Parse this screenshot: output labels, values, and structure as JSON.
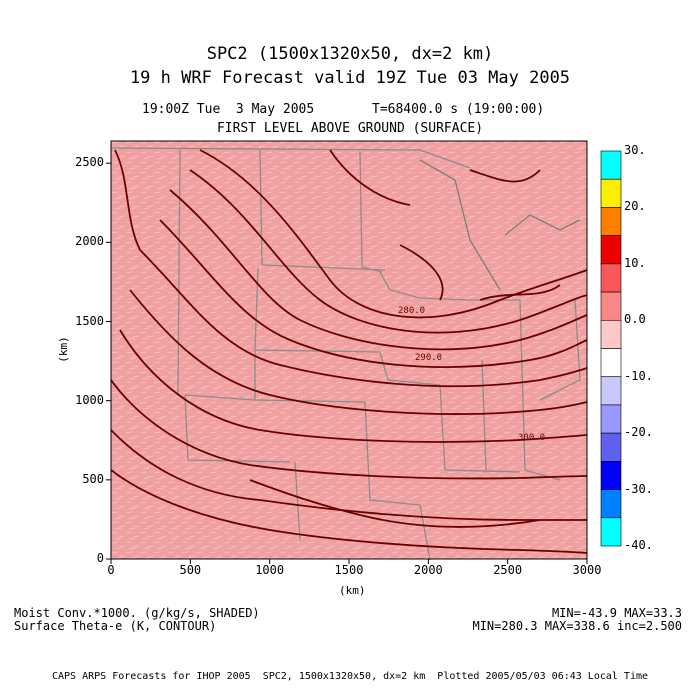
{
  "header": {
    "title_line1": "SPC2 (1500x1320x50, dx=2 km)",
    "title_line2": "19 h WRF Forecast valid 19Z Tue 03 May 2005",
    "valid_time": "19:00Z Tue  3 May 2005",
    "model_time": "T=68400.0 s (19:00:00)",
    "level": "FIRST LEVEL ABOVE GROUND (SURFACE)"
  },
  "map": {
    "xlabel": "(km)",
    "ylabel": "(km)",
    "xlim": [
      0,
      3000
    ],
    "ylim": [
      0,
      2640
    ],
    "x_ticks": [
      "0",
      "500",
      "1000",
      "1500",
      "2000",
      "2500",
      "3000"
    ],
    "y_ticks": [
      "0",
      "500",
      "1000",
      "1500",
      "2000",
      "2500"
    ],
    "contour_labels": [
      "280.0",
      "290.0",
      "300.0"
    ],
    "colors": {
      "background": "#f0a0a0",
      "contour": "#6b0000",
      "boundaries": "#8c8c8c"
    }
  },
  "colorbar": {
    "labels": [
      "30.",
      "20.",
      "10.",
      "0.0",
      "-10.",
      "-20.",
      "-30.",
      "-40."
    ],
    "colors": [
      "#00ffff",
      "#ffee00",
      "#ff8000",
      "#ee0000",
      "#f85858",
      "#f88888",
      "#ffc8c8",
      "#ffffff",
      "#c8c8ff",
      "#9898ff",
      "#6060f0",
      "#0000ff",
      "#0080ff",
      "#00ffff"
    ]
  },
  "footer": {
    "left_line1": "Moist Conv.*1000. (g/kg/s, SHADED)",
    "left_line2": "Surface Theta-e (K, CONTOUR)",
    "right_line1": "MIN=-43.9 MAX=33.3",
    "right_line2": "MIN=280.3 MAX=338.6 inc=2.500",
    "credit": "CAPS ARPS Forecasts for IHOP 2005  SPC2, 1500x1320x50, dx=2 km  Plotted 2005/05/03 06:43 Local Time"
  }
}
